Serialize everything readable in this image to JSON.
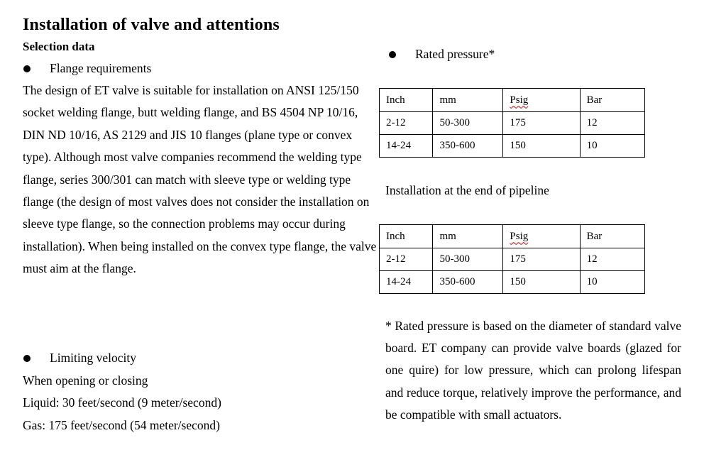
{
  "title": "Installation of valve and attentions",
  "left": {
    "section_heading": "Selection data",
    "flange_bullet": "Flange requirements",
    "flange_paragraph": "The design of ET valve is suitable for installation on ANSI 125/150 socket welding flange, butt welding flange, and BS 4504 NP 10/16, DIN ND 10/16, AS 2129 and JIS 10 flanges (plane type or convex type). Although most valve companies recommend the welding type flange, series 300/301 can match with sleeve type or welding type flange (the design of most valves does not consider the installation on sleeve type flange, so the connection problems may occur during installation). When being installed on the convex type flange, the valve must aim at the flange.",
    "velocity_bullet": "Limiting velocity",
    "velocity_intro": "When opening or closing",
    "velocity_liquid": "Liquid: 30 feet/second (9 meter/second)",
    "velocity_gas": "Gas: 175 feet/second (54 meter/second)"
  },
  "right": {
    "rated_pressure_bullet": "Rated pressure*",
    "pipeline_heading": "Installation at the end of pipeline",
    "footnote": "* Rated pressure is based on the diameter of standard valve board. ET company can provide valve boards (glazed for one quire) for low pressure, which can prolong lifespan and reduce torque, relatively improve the performance, and be compatible with small actuators."
  },
  "tables": {
    "rated_pressure": {
      "headers": [
        "Inch",
        "mm",
        "Psig",
        "Bar"
      ],
      "rows": [
        [
          "2-12",
          "50-300",
          "175",
          "12"
        ],
        [
          "14-24",
          "350-600",
          "150",
          "10"
        ]
      ]
    },
    "end_of_pipeline": {
      "headers": [
        "Inch",
        "mm",
        "Psig",
        "Bar"
      ],
      "rows": [
        [
          "2-12",
          "50-300",
          "175",
          "12"
        ],
        [
          "14-24",
          "350-600",
          "150",
          "10"
        ]
      ]
    }
  },
  "colors": {
    "text": "#000000",
    "background": "#ffffff",
    "spellcheck_underline": "#c00000"
  }
}
